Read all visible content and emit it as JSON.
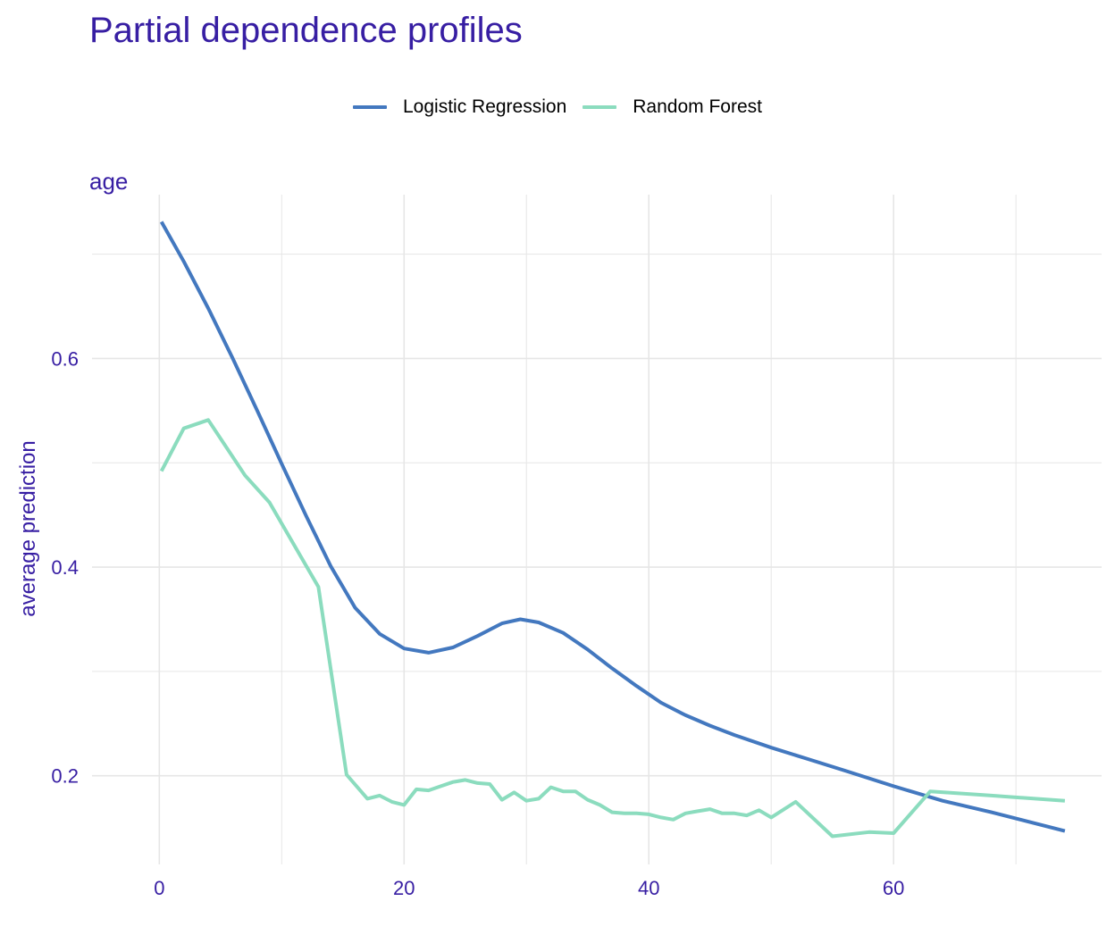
{
  "title": "Partial dependence profiles",
  "facet_label": "age",
  "colors": {
    "title": "#371ea3",
    "grid": "#e6e6e6",
    "lr": "#4378bf",
    "rf": "#8bdcbe"
  },
  "chart_data": {
    "type": "line",
    "title": "Partial dependence profiles",
    "facet": "age",
    "xlabel": "",
    "ylabel": "average prediction",
    "xlim": [
      -5.5,
      77
    ],
    "ylim": [
      0.115,
      0.757
    ],
    "x_ticks": [
      0,
      20,
      40,
      60
    ],
    "y_ticks": [
      0.2,
      0.4,
      0.6
    ],
    "grid": true,
    "legend_position": "top",
    "series": [
      {
        "name": "Logistic Regression",
        "color": "#4378bf",
        "x": [
          0.17,
          2,
          4,
          6,
          8,
          10,
          12,
          14,
          16,
          18,
          20,
          22,
          24,
          26,
          28,
          29.5,
          31,
          33,
          35,
          37,
          39,
          41,
          43,
          45,
          47,
          50,
          53,
          56,
          60,
          64,
          68,
          74
        ],
        "y": [
          0.731,
          0.693,
          0.648,
          0.6,
          0.55,
          0.499,
          0.449,
          0.401,
          0.361,
          0.336,
          0.322,
          0.318,
          0.323,
          0.334,
          0.346,
          0.35,
          0.347,
          0.337,
          0.321,
          0.303,
          0.286,
          0.27,
          0.258,
          0.248,
          0.239,
          0.227,
          0.216,
          0.205,
          0.19,
          0.176,
          0.165,
          0.147
        ]
      },
      {
        "name": "Random Forest",
        "color": "#8bdcbe",
        "x": [
          0.17,
          2,
          4,
          7,
          9,
          13,
          15.3,
          17,
          18,
          19,
          20,
          21,
          22,
          23,
          24,
          25,
          26,
          27,
          28,
          29,
          30,
          31,
          32,
          33,
          34,
          35,
          36,
          37,
          38,
          39,
          40,
          41,
          42,
          43,
          44,
          45,
          46,
          47,
          48,
          49,
          50,
          52,
          55,
          58,
          60,
          63,
          68,
          74
        ],
        "y": [
          0.492,
          0.533,
          0.541,
          0.488,
          0.462,
          0.381,
          0.201,
          0.178,
          0.181,
          0.175,
          0.172,
          0.187,
          0.186,
          0.19,
          0.194,
          0.196,
          0.193,
          0.192,
          0.177,
          0.184,
          0.176,
          0.178,
          0.189,
          0.185,
          0.185,
          0.177,
          0.172,
          0.165,
          0.164,
          0.164,
          0.163,
          0.16,
          0.158,
          0.164,
          0.166,
          0.168,
          0.164,
          0.164,
          0.162,
          0.167,
          0.16,
          0.175,
          0.142,
          0.146,
          0.145,
          0.185,
          0.181,
          0.176
        ]
      }
    ]
  }
}
